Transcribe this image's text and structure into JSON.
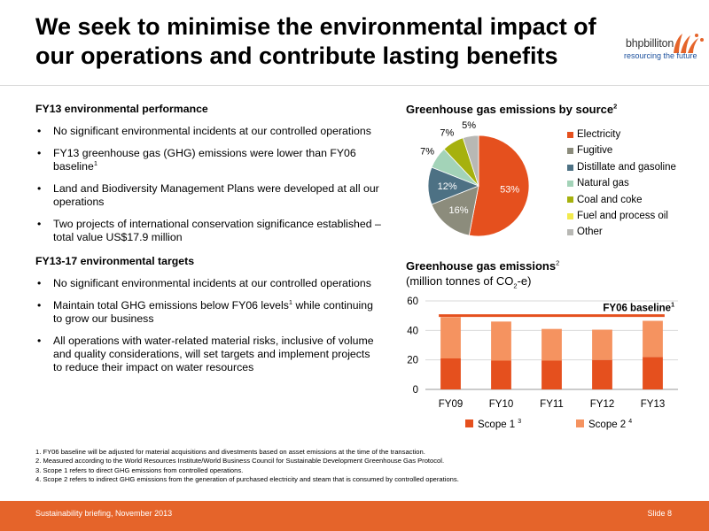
{
  "header": {
    "title": "We seek to minimise the environmental impact of our operations and contribute lasting benefits",
    "logo_name": "bhpbilliton",
    "logo_tagline": "resourcing the future",
    "logo_color": "#e5642a"
  },
  "performance": {
    "heading": "FY13 environmental performance",
    "bullets": [
      {
        "text": "No significant environmental incidents at our controlled operations",
        "sup": ""
      },
      {
        "text": "FY13 greenhouse gas (GHG) emissions were lower than FY06 baseline",
        "sup": "1"
      },
      {
        "text": "Land and Biodiversity Management Plans were developed at all our operations",
        "sup": ""
      },
      {
        "text": "Two projects of international conservation significance established – total value US$17.9 million",
        "sup": ""
      }
    ]
  },
  "targets": {
    "heading": "FY13-17 environmental targets",
    "bullets": [
      {
        "pre": "No significant environmental incidents at our controlled operations",
        "sup": "",
        "post": ""
      },
      {
        "pre": "Maintain total GHG emissions below FY06 levels",
        "sup": "1",
        "post": " while continuing to grow our business"
      },
      {
        "pre": "All operations with water-related material risks, inclusive of volume and quality considerations, will set targets and implement projects to reduce their impact on water resources",
        "sup": "",
        "post": ""
      }
    ]
  },
  "pie_chart": {
    "title": "Greenhouse gas emissions by source",
    "title_sup": "2",
    "chart_data": {
      "type": "pie",
      "title": "Greenhouse gas emissions by source",
      "slices": [
        {
          "label": "Electricity",
          "value": 53,
          "display": "53%",
          "color": "#e5501e"
        },
        {
          "label": "Fugitive",
          "value": 16,
          "display": "16%",
          "color": "#8c8c7c"
        },
        {
          "label": "Distillate and gasoline",
          "value": 12,
          "display": "12%",
          "color": "#4d7184"
        },
        {
          "label": "Natural gas",
          "value": 7,
          "display": "7%",
          "color": "#a3d3b8"
        },
        {
          "label": "Coal and coke",
          "value": 7,
          "display": "7%",
          "color": "#a6b10e"
        },
        {
          "label": "Fuel and process oil",
          "value": 0,
          "display": "",
          "color": "#f2ea4c"
        },
        {
          "label": "Other",
          "value": 5,
          "display": "5%",
          "color": "#b8b8b4"
        }
      ],
      "legend": "right"
    }
  },
  "bar_chart": {
    "title": "Greenhouse gas emissions",
    "title_sup": "2",
    "subtitle_pre": "(million tonnes of CO",
    "subtitle_sub": "2",
    "subtitle_post": "-e)",
    "baseline_label": "FY06 baseline",
    "baseline_sup": "1",
    "legend": [
      {
        "label": "Scope 1",
        "sup": "3",
        "color": "#e5501e"
      },
      {
        "label": "Scope 2",
        "sup": "4",
        "color": "#f59360"
      }
    ],
    "chart_data": {
      "type": "bar",
      "stacked": true,
      "categories": [
        "FY09",
        "FY10",
        "FY11",
        "FY12",
        "FY13"
      ],
      "series": [
        {
          "name": "Scope 1",
          "values": [
            21,
            19.5,
            19.5,
            20,
            22
          ]
        },
        {
          "name": "Scope 2",
          "values": [
            28,
            26.5,
            21.5,
            20.5,
            24.5
          ]
        }
      ],
      "baseline": 50,
      "ylim": [
        0,
        60
      ],
      "yticks": [
        "0",
        "20",
        "40",
        "60"
      ],
      "ytick_values": [
        0,
        20,
        40,
        60
      ],
      "grid": true,
      "legend": "bottom"
    }
  },
  "footnotes": [
    "1.  FY06 baseline will be adjusted for material acquisitions and divestments based on asset emissions at the time of the transaction.",
    "2.  Measured according to the World Resources Institute/World Business Council for Sustainable Development Greenhouse Gas Protocol.",
    "3.  Scope 1 refers to direct GHG emissions from controlled operations.",
    "4.  Scope 2 refers to indirect GHG emissions from the generation of purchased electricity and steam that is consumed by controlled operations."
  ],
  "footer": {
    "left": "Sustainability briefing, November 2013",
    "right": "Slide 8"
  }
}
